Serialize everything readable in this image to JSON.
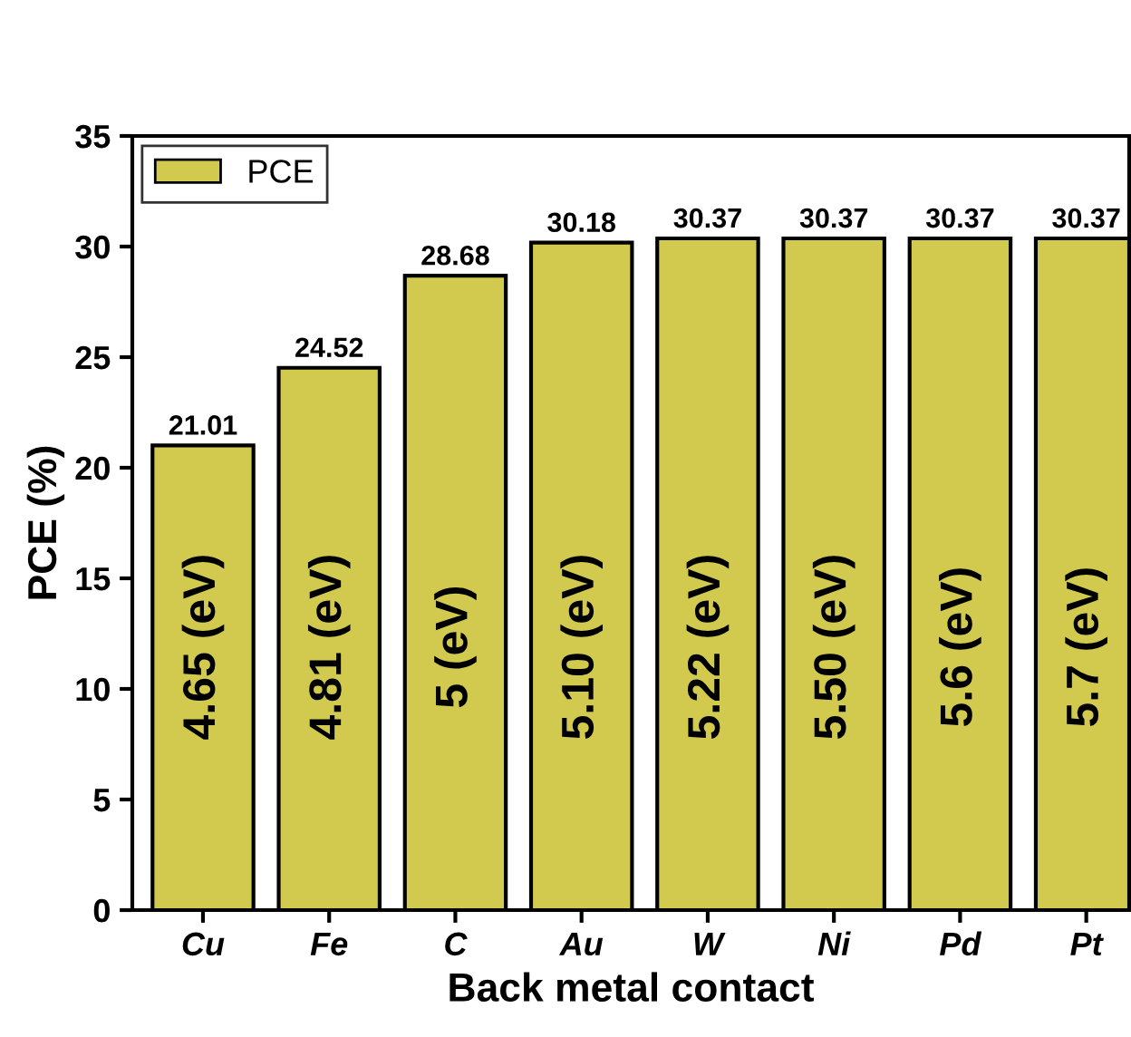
{
  "chart_data": {
    "type": "bar",
    "xlabel": "Back metal contact",
    "ylabel": "PCE (%)",
    "categories": [
      "Cu",
      "Fe",
      "C",
      "Au",
      "W",
      "Ni",
      "Pd",
      "Pt"
    ],
    "series": [
      {
        "name": "PCE",
        "color": "#d2ca4e",
        "values": [
          21.01,
          24.52,
          28.68,
          30.18,
          30.37,
          30.37,
          30.37,
          30.37
        ]
      }
    ],
    "data_labels": true,
    "ylim": [
      0,
      35
    ],
    "yticks": [
      0,
      5,
      10,
      15,
      20,
      25,
      30,
      35
    ],
    "grid": false,
    "legend": "top left",
    "annotations": [
      "4.65 (eV)",
      "4.81 (eV)",
      "5 (eV)",
      "5.10 (eV)",
      "5.22 (eV)",
      "5.50 (eV)",
      "5.6 (eV)",
      "5.7 (eV)"
    ]
  }
}
